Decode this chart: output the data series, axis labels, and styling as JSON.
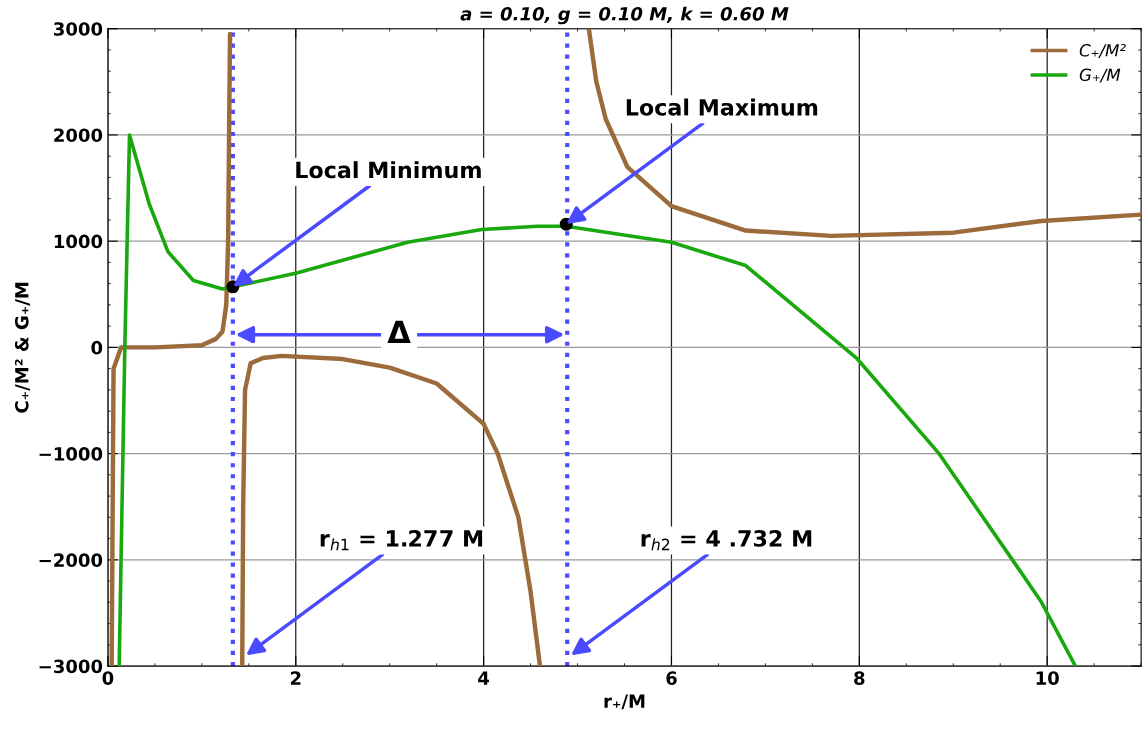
{
  "chart_data": {
    "type": "line",
    "title": "a = 0.10, g = 0.10 M, k = 0.60 M",
    "xlabel": "r₊/M",
    "ylabel": "C₊/M² & G₊/M",
    "xlim": [
      0,
      11
    ],
    "xticks": [
      0,
      2,
      4,
      6,
      8,
      10
    ],
    "ylim": [
      -3000,
      3000
    ],
    "yticks": [
      -3000,
      -2000,
      -1000,
      0,
      1000,
      2000,
      3000
    ],
    "grid": true,
    "legend": "top right",
    "series": [
      {
        "name": "C₊/M²",
        "color": "#9c6b3b",
        "x": [
          0.04,
          0.06,
          0.14,
          0.5,
          1.0,
          1.15,
          1.22,
          1.26,
          1.28,
          1.29,
          1.3,
          1.36,
          1.43,
          1.44,
          1.46,
          1.52,
          1.65,
          1.85,
          2.5,
          3.0,
          3.5,
          4.0,
          4.15,
          4.37,
          4.5,
          4.6,
          4.85,
          5.12,
          5.2,
          5.3,
          5.53,
          6.0,
          6.79,
          7.7,
          9.0,
          9.94,
          11
        ],
        "values": [
          -3000,
          -200,
          0,
          0,
          20,
          80,
          150,
          400,
          1000,
          2000,
          2950,
          null,
          -3000,
          -1500,
          -400,
          -150,
          -100,
          -80,
          -110,
          -190,
          -340,
          -720,
          -1000,
          -1600,
          -2300,
          -3000,
          null,
          3000,
          2500,
          2150,
          1700,
          1330,
          1100,
          1050,
          1080,
          1190,
          1250
        ]
      },
      {
        "name": "G₊/M",
        "color": "#1aa80f",
        "x": [
          0.12,
          0.18,
          0.23,
          0.44,
          0.64,
          0.91,
          1.22,
          1.33,
          2.01,
          3.19,
          3.98,
          4.57,
          4.88,
          6.0,
          6.79,
          7.97,
          8.84,
          9.63,
          9.94,
          10.3
        ],
        "values": [
          -3000,
          0,
          2000,
          1350,
          900,
          630,
          550,
          570,
          700,
          990,
          1110,
          1140,
          1140,
          990,
          770,
          -100,
          -990,
          -2000,
          -2400,
          -3000
        ]
      },
      {
        "type": "scatter",
        "color": "#000000",
        "marker": "circle",
        "x": [
          1.33,
          4.88
        ],
        "values": [
          570,
          1160
        ]
      }
    ],
    "ref_lines": [
      {
        "axis": "x",
        "value": 1.33,
        "color": "#4a4aff",
        "line_style": "dotted"
      },
      {
        "axis": "x",
        "value": 4.89,
        "color": "#4a4aff",
        "line_style": "dotted"
      }
    ],
    "annotations": [
      {
        "text": "Local Minimum",
        "x": 1.33,
        "y": 570
      },
      {
        "text": "Local Maximum",
        "x": 4.88,
        "y": 1160
      },
      {
        "text": "Δ",
        "x": 3.1,
        "y": 120
      },
      {
        "text": "r$_{h1}$ = 1.277 M",
        "x": 1.47,
        "y": -2900
      },
      {
        "text": "r$_{h2}$ = 4 .732 M",
        "x": 4.93,
        "y": -2900
      }
    ]
  }
}
